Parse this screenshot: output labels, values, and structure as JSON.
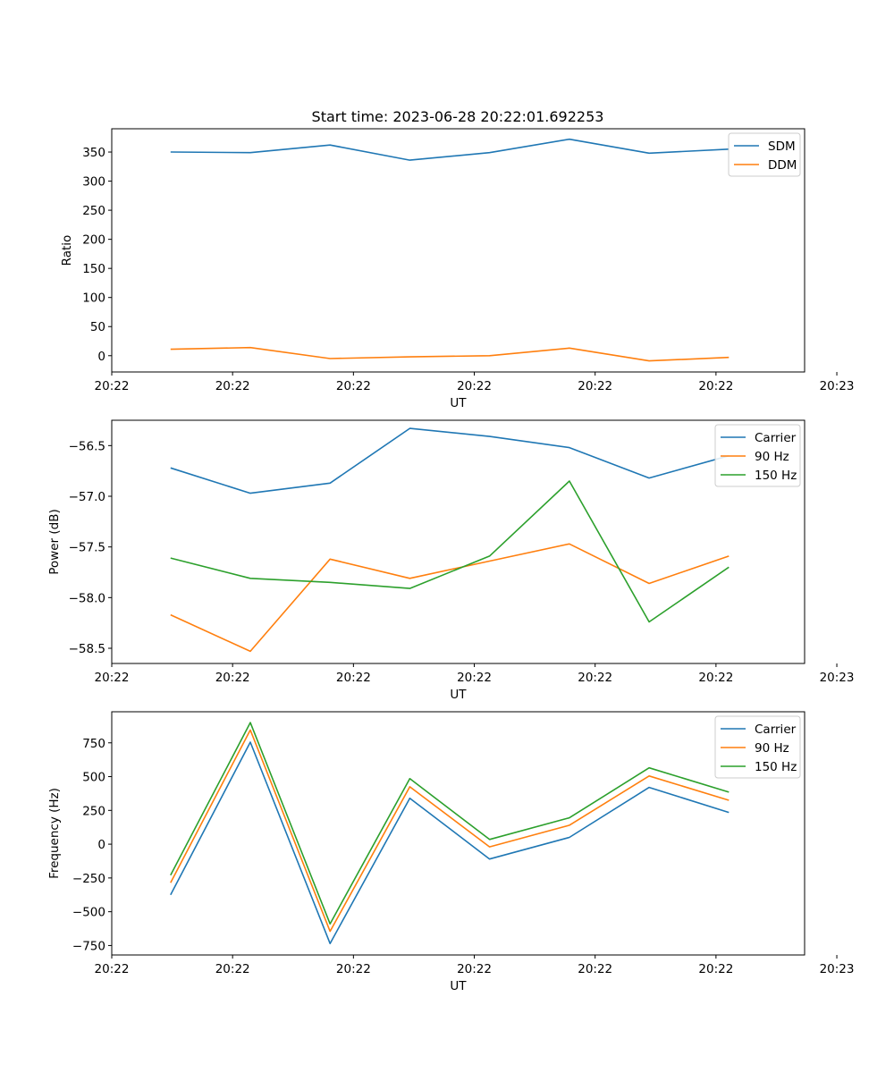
{
  "title": "Start time: 2023-06-28 20:22:01.692253",
  "chart_data": [
    {
      "type": "line",
      "xlabel": "UT",
      "ylabel": "Ratio",
      "xlim": [
        0,
        8.6
      ],
      "ylim": [
        -28,
        390
      ],
      "x_ticks": [
        {
          "x": 0,
          "label": "20:22"
        },
        {
          "x": 1.5,
          "label": "20:22"
        },
        {
          "x": 3,
          "label": "20:22"
        },
        {
          "x": 4.5,
          "label": "20:22"
        },
        {
          "x": 6,
          "label": "20:22"
        },
        {
          "x": 7.5,
          "label": "20:22"
        },
        {
          "x": 9,
          "label": "20:23"
        }
      ],
      "y_ticks": [
        0,
        50,
        100,
        150,
        200,
        250,
        300,
        350
      ],
      "x": [
        0.73,
        1.72,
        2.71,
        3.7,
        4.69,
        5.68,
        6.67,
        7.66
      ],
      "series": [
        {
          "name": "SDM",
          "color": "#1f77b4",
          "values": [
            350,
            349,
            362,
            336,
            349,
            372,
            348,
            355
          ]
        },
        {
          "name": "DDM",
          "color": "#ff7f0e",
          "values": [
            11,
            14,
            -5,
            -2,
            0,
            13,
            -9,
            -3
          ]
        }
      ],
      "legend": "top-right"
    },
    {
      "type": "line",
      "xlabel": "UT",
      "ylabel": "Power (dB)",
      "xlim": [
        0,
        8.6
      ],
      "ylim": [
        -58.65,
        -56.25
      ],
      "x_ticks": [
        {
          "x": 0,
          "label": "20:22"
        },
        {
          "x": 1.5,
          "label": "20:22"
        },
        {
          "x": 3,
          "label": "20:22"
        },
        {
          "x": 4.5,
          "label": "20:22"
        },
        {
          "x": 6,
          "label": "20:22"
        },
        {
          "x": 7.5,
          "label": "20:22"
        },
        {
          "x": 9,
          "label": "20:23"
        }
      ],
      "y_ticks": [
        {
          "v": -56.5,
          "label": "−56.5"
        },
        {
          "v": -57.0,
          "label": "−57.0"
        },
        {
          "v": -57.5,
          "label": "−57.5"
        },
        {
          "v": -58.0,
          "label": "−58.0"
        },
        {
          "v": -58.5,
          "label": "−58.5"
        }
      ],
      "x": [
        0.73,
        1.72,
        2.71,
        3.7,
        4.69,
        5.68,
        6.67,
        7.66
      ],
      "series": [
        {
          "name": "Carrier",
          "color": "#1f77b4",
          "values": [
            -56.72,
            -56.97,
            -56.87,
            -56.33,
            -56.41,
            -56.52,
            -56.82,
            -56.6
          ]
        },
        {
          "name": "90 Hz",
          "color": "#ff7f0e",
          "values": [
            -58.17,
            -58.53,
            -57.62,
            -57.81,
            -57.64,
            -57.47,
            -57.86,
            -57.59
          ]
        },
        {
          "name": "150 Hz",
          "color": "#2ca02c",
          "values": [
            -57.61,
            -57.81,
            -57.85,
            -57.91,
            -57.59,
            -56.85,
            -58.24,
            -57.7
          ]
        }
      ],
      "legend": "top-right"
    },
    {
      "type": "line",
      "xlabel": "UT",
      "ylabel": "Frequency (Hz)",
      "xlim": [
        0,
        8.6
      ],
      "ylim": [
        -820,
        980
      ],
      "x_ticks": [
        {
          "x": 0,
          "label": "20:22"
        },
        {
          "x": 1.5,
          "label": "20:22"
        },
        {
          "x": 3,
          "label": "20:22"
        },
        {
          "x": 4.5,
          "label": "20:22"
        },
        {
          "x": 6,
          "label": "20:22"
        },
        {
          "x": 7.5,
          "label": "20:22"
        },
        {
          "x": 9,
          "label": "20:23"
        }
      ],
      "y_ticks": [
        {
          "v": 750,
          "label": "750"
        },
        {
          "v": 500,
          "label": "500"
        },
        {
          "v": 250,
          "label": "250"
        },
        {
          "v": 0,
          "label": "0"
        },
        {
          "v": -250,
          "label": "−250"
        },
        {
          "v": -500,
          "label": "−500"
        },
        {
          "v": -750,
          "label": "−750"
        }
      ],
      "x": [
        0.73,
        1.72,
        2.71,
        3.7,
        4.69,
        5.68,
        6.67,
        7.66
      ],
      "series": [
        {
          "name": "Carrier",
          "color": "#1f77b4",
          "values": [
            -375,
            755,
            -735,
            340,
            -110,
            50,
            420,
            235
          ]
        },
        {
          "name": "90 Hz",
          "color": "#ff7f0e",
          "values": [
            -285,
            845,
            -645,
            425,
            -20,
            140,
            505,
            325
          ]
        },
        {
          "name": "150 Hz",
          "color": "#2ca02c",
          "values": [
            -230,
            900,
            -590,
            485,
            35,
            195,
            565,
            385
          ]
        }
      ],
      "legend": "top-right"
    }
  ]
}
